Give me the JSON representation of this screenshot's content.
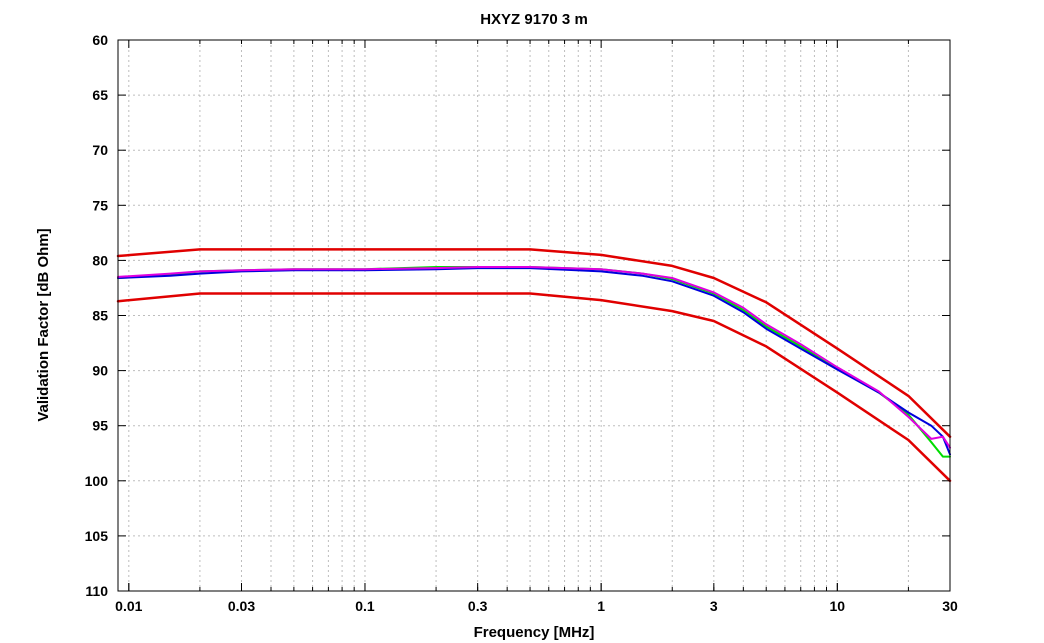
{
  "chart_data": {
    "type": "line",
    "title": "HXYZ 9170 3 m",
    "xlabel": "Frequency [MHz]",
    "ylabel": "Validation Factor [dB Ohm]",
    "x_scale": "log",
    "xlim": [
      0.009,
      30
    ],
    "ylim": [
      60,
      110
    ],
    "y_inverted": true,
    "grid": true,
    "x_ticks": [
      {
        "value": 0.01,
        "label": "0.01"
      },
      {
        "value": 0.03,
        "label": "0.03"
      },
      {
        "value": 0.1,
        "label": "0.1"
      },
      {
        "value": 0.3,
        "label": "0.3"
      },
      {
        "value": 1,
        "label": "1"
      },
      {
        "value": 3,
        "label": "3"
      },
      {
        "value": 10,
        "label": "10"
      },
      {
        "value": 30,
        "label": "30"
      }
    ],
    "y_ticks": [
      {
        "value": 60,
        "label": "60"
      },
      {
        "value": 65,
        "label": "65"
      },
      {
        "value": 70,
        "label": "70"
      },
      {
        "value": 75,
        "label": "75"
      },
      {
        "value": 80,
        "label": "80"
      },
      {
        "value": 85,
        "label": "85"
      },
      {
        "value": 90,
        "label": "90"
      },
      {
        "value": 95,
        "label": "95"
      },
      {
        "value": 100,
        "label": "100"
      },
      {
        "value": 105,
        "label": "105"
      },
      {
        "value": 110,
        "label": "110"
      }
    ],
    "series": [
      {
        "color": "#e00000",
        "width": 2.5,
        "x": [
          0.009,
          0.02,
          0.5,
          1,
          2,
          3,
          5,
          10,
          20,
          30
        ],
        "y": [
          79.6,
          79.0,
          79.0,
          79.5,
          80.5,
          81.6,
          83.8,
          88.0,
          92.3,
          96.0
        ]
      },
      {
        "color": "#e00000",
        "width": 2.5,
        "x": [
          0.009,
          0.02,
          0.5,
          1,
          2,
          3,
          5,
          10,
          20,
          30
        ],
        "y": [
          83.7,
          83.0,
          83.0,
          83.6,
          84.6,
          85.5,
          87.8,
          92.0,
          96.3,
          100.0
        ]
      },
      {
        "color": "#00dd00",
        "width": 2,
        "x": [
          0.009,
          0.015,
          0.02,
          0.03,
          0.05,
          0.1,
          0.2,
          0.3,
          0.5,
          1,
          1.5,
          2,
          3,
          4,
          5,
          7,
          10,
          15,
          20,
          25,
          28,
          30
        ],
        "y": [
          81.6,
          81.3,
          81.0,
          80.9,
          80.8,
          80.8,
          80.6,
          80.6,
          80.6,
          80.8,
          81.2,
          81.7,
          83.0,
          84.5,
          86.0,
          87.8,
          89.8,
          92.0,
          94.0,
          96.5,
          97.8,
          97.8
        ]
      },
      {
        "color": "#0000dd",
        "width": 2,
        "x": [
          0.009,
          0.015,
          0.02,
          0.03,
          0.05,
          0.1,
          0.2,
          0.3,
          0.5,
          1,
          1.5,
          2,
          3,
          4,
          5,
          7,
          10,
          15,
          20,
          25,
          28,
          30
        ],
        "y": [
          81.6,
          81.4,
          81.2,
          81.0,
          80.9,
          80.9,
          80.8,
          80.7,
          80.7,
          81.0,
          81.4,
          81.9,
          83.2,
          84.7,
          86.2,
          88.0,
          89.9,
          92.0,
          93.8,
          95.0,
          96.0,
          97.6
        ]
      },
      {
        "color": "#e000e0",
        "width": 2,
        "x": [
          0.009,
          0.015,
          0.02,
          0.03,
          0.05,
          0.1,
          0.2,
          0.3,
          0.5,
          1,
          1.5,
          2,
          3,
          4,
          5,
          7,
          10,
          15,
          20,
          25,
          28,
          30
        ],
        "y": [
          81.5,
          81.2,
          81.0,
          80.9,
          80.8,
          80.8,
          80.7,
          80.6,
          80.6,
          80.8,
          81.2,
          81.6,
          82.9,
          84.3,
          85.8,
          87.6,
          89.7,
          91.9,
          94.2,
          96.2,
          96.0,
          97.0
        ]
      }
    ]
  }
}
